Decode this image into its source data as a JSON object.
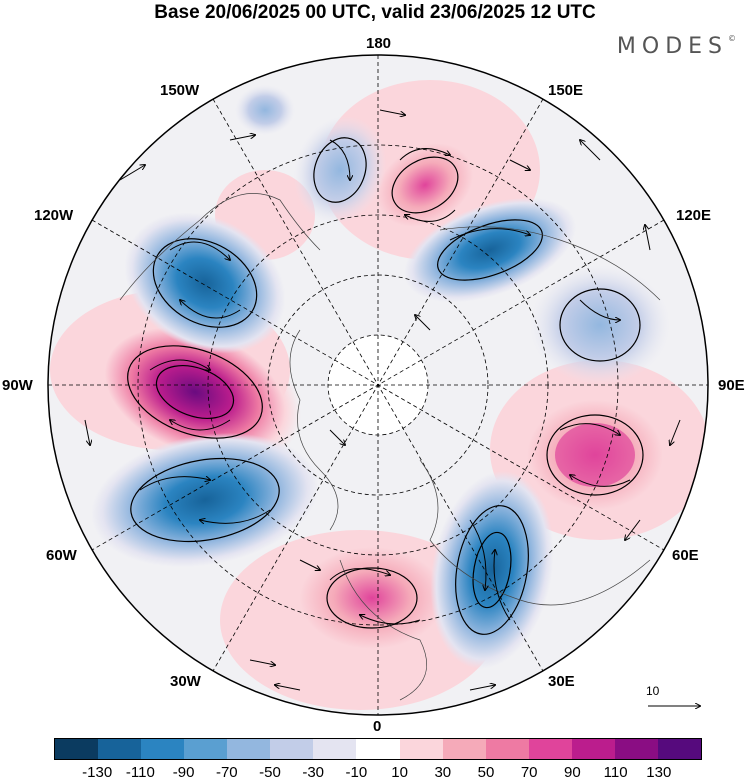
{
  "title": "Base 20/06/2025 00 UTC, valid 23/06/2025 12 UTC",
  "logo": "MODES",
  "logo_mark": "©",
  "longitude_labels": [
    "180",
    "150E",
    "120E",
    "90E",
    "60E",
    "30E",
    "0",
    "30W",
    "60W",
    "90W",
    "120W",
    "150W"
  ],
  "reference_vector": {
    "label": "10",
    "icon": "arrow-right-icon"
  },
  "colorbar": {
    "colors": [
      "#0b3b60",
      "#17639a",
      "#2b84c1",
      "#5a9fd1",
      "#93b7df",
      "#c2cde8",
      "#e4e4f1",
      "#ffffff",
      "#fbd6dc",
      "#f5aab9",
      "#ee7aa3",
      "#e0449b",
      "#bb1d8d",
      "#8a0d83",
      "#560a7d"
    ],
    "tick_labels": [
      "-130",
      "-110",
      "-90",
      "-70",
      "-50",
      "-30",
      "-10",
      "10",
      "30",
      "50",
      "70",
      "90",
      "110",
      "130"
    ]
  },
  "anomaly_centers": [
    {
      "sign": "positive",
      "lon": "near 90W",
      "strength": "strong"
    },
    {
      "sign": "negative",
      "lon": "near 110W",
      "strength": "moderate"
    },
    {
      "sign": "negative",
      "lon": "near 70W",
      "strength": "moderate"
    },
    {
      "sign": "positive",
      "lon": "near 10W",
      "strength": "moderate"
    },
    {
      "sign": "negative",
      "lon": "near 25E",
      "strength": "strong"
    },
    {
      "sign": "positive",
      "lon": "near 70E",
      "strength": "strong"
    },
    {
      "sign": "negative",
      "lon": "near 110E",
      "strength": "weak"
    },
    {
      "sign": "negative",
      "lon": "near 145E",
      "strength": "moderate"
    },
    {
      "sign": "positive",
      "lon": "near 160E",
      "strength": "moderate"
    },
    {
      "sign": "negative",
      "lon": "near 165W",
      "strength": "weak"
    }
  ]
}
